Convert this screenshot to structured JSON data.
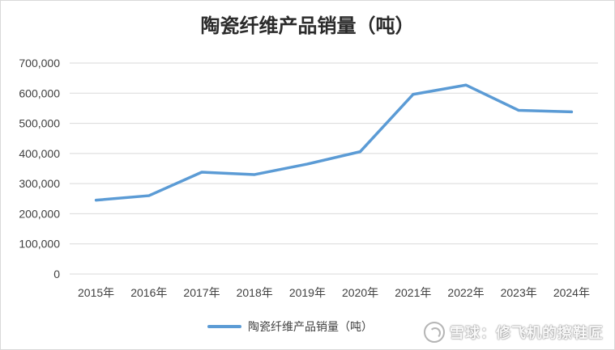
{
  "chart_data": {
    "type": "line",
    "title": "陶瓷纤维产品销量（吨）",
    "categories": [
      "2015年",
      "2016年",
      "2017年",
      "2018年",
      "2019年",
      "2020年",
      "2021年",
      "2022年",
      "2023年",
      "2024年"
    ],
    "series": [
      {
        "name": "陶瓷纤维产品销量（吨）",
        "color": "#5b9bd5",
        "values": [
          245000,
          260000,
          338000,
          330000,
          365000,
          406000,
          596000,
          627000,
          543000,
          538000
        ]
      }
    ],
    "yticks": [
      "0",
      "100,000",
      "200,000",
      "300,000",
      "400,000",
      "500,000",
      "600,000",
      "700,000"
    ],
    "ylim": [
      0,
      700000
    ],
    "grid": true,
    "legend": "bottom"
  },
  "watermark": {
    "text": "雪球：修飞机的擦鞋匠",
    "icon": "snowball-logo-icon"
  }
}
